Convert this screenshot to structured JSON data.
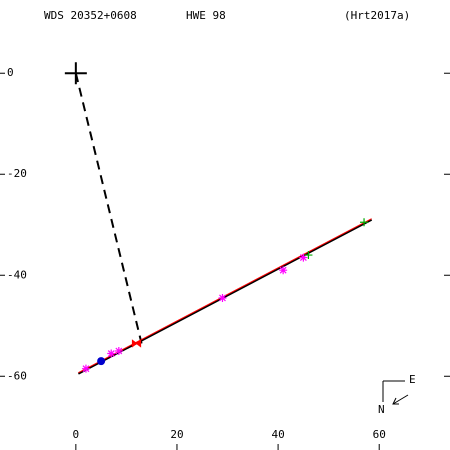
{
  "chart_data": {
    "type": "scatter",
    "header": {
      "wds": "WDS 20352+0608",
      "discoverer": "HWE  98",
      "reference": "(Hrt2017a)"
    },
    "xlim": [
      -15,
      74
    ],
    "ylim": [
      -74.6,
      14.5
    ],
    "xticks": [
      0,
      20,
      40,
      60
    ],
    "yticks": [
      0,
      -20,
      -40,
      -60
    ],
    "primary": {
      "x": 0,
      "y": 0
    },
    "periastron_line": {
      "x": [
        0,
        13
      ],
      "y": [
        0,
        -53.5
      ]
    },
    "orbit_line": {
      "color": "#000000",
      "x": [
        0.5,
        58.5
      ],
      "y": [
        -59.5,
        -29
      ]
    },
    "fit_line": {
      "color": "#ff0000",
      "x": [
        0.5,
        58.5
      ],
      "y": [
        -59.3,
        -28.8
      ]
    },
    "series": [
      {
        "color": "#ff00ff",
        "marker": "star",
        "x": [
          2,
          7,
          8.5,
          29,
          41,
          45
        ],
        "y": [
          -58.5,
          -55.5,
          -55,
          -44.5,
          -39,
          -36.5
        ]
      },
      {
        "color": "#ff0000",
        "marker": "bowtie",
        "x": [
          12
        ],
        "y": [
          -53.5
        ]
      },
      {
        "color": "#0000cc",
        "marker": "dot",
        "x": [
          5
        ],
        "y": [
          -57
        ]
      },
      {
        "color": "#00aa00",
        "marker": "plus",
        "x": [
          46,
          57
        ],
        "y": [
          -36,
          -29.5
        ]
      }
    ],
    "compass": {
      "east": "E",
      "north": "N"
    }
  }
}
